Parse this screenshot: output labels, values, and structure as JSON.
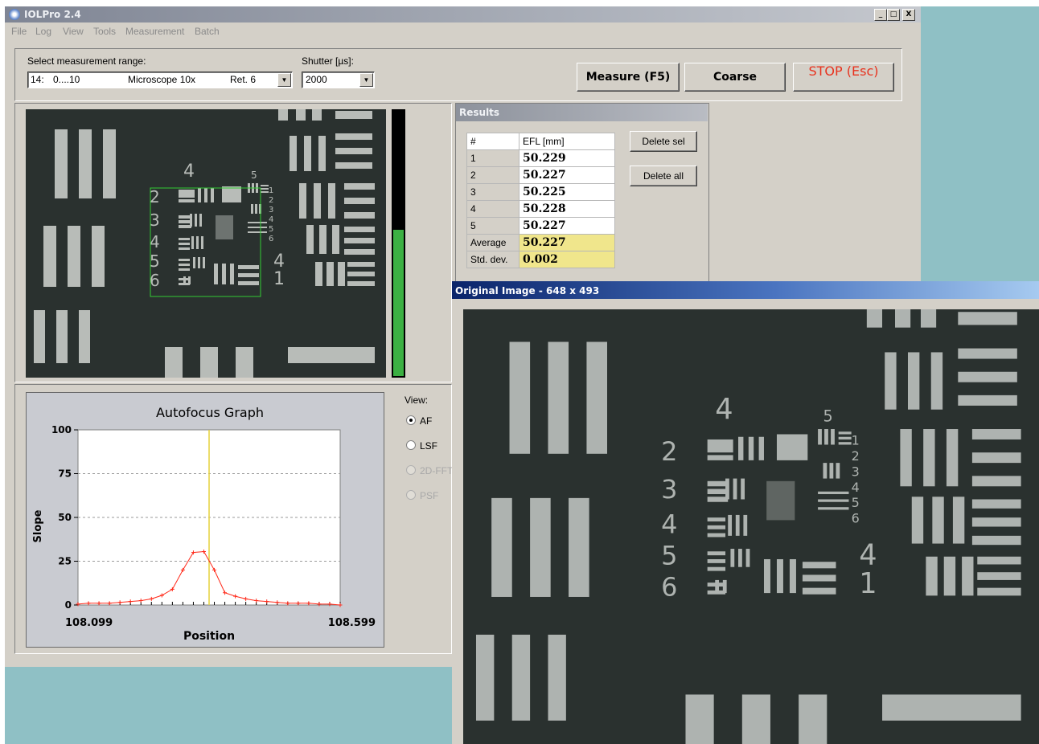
{
  "app": {
    "title": "IOLPro 2.4",
    "window_buttons": [
      "_",
      "□",
      "X"
    ]
  },
  "menu": [
    "File",
    "Log",
    "View",
    "Tools",
    "Measurement",
    "Batch"
  ],
  "controls": {
    "range_label": "Select measurement range:",
    "range_value": {
      "id": "14:",
      "range": "0....10",
      "lens": "Microscope 10x",
      "ret": "Ret. 6"
    },
    "shutter_label": "Shutter [µs]:",
    "shutter_value": "2000",
    "measure_button": "Measure (F5)",
    "coarse_button": "Coarse",
    "stop_button": "STOP (Esc)"
  },
  "focus_level": 0.55,
  "results": {
    "title": "Results",
    "columns": [
      "#",
      "EFL [mm]"
    ],
    "rows": [
      {
        "n": "1",
        "efl": "50.229"
      },
      {
        "n": "2",
        "efl": "50.227"
      },
      {
        "n": "3",
        "efl": "50.225"
      },
      {
        "n": "4",
        "efl": "50.228"
      },
      {
        "n": "5",
        "efl": "50.227"
      }
    ],
    "average_label": "Average",
    "average_value": "50.227",
    "std_label": "Std. dev.",
    "std_value": "0.002",
    "delete_sel": "Delete sel",
    "delete_all": "Delete all"
  },
  "view": {
    "label": "View:",
    "options": [
      {
        "label": "AF",
        "selected": true,
        "enabled": true
      },
      {
        "label": "LSF",
        "selected": false,
        "enabled": true
      },
      {
        "label": "2D-FFT",
        "selected": false,
        "enabled": false
      },
      {
        "label": "PSF",
        "selected": false,
        "enabled": false
      }
    ]
  },
  "target_labels": {
    "g4": "4",
    "g5": "5",
    "e2": "2",
    "e3": "3",
    "e4": "4",
    "e5": "5",
    "e6": "6",
    "s1": "1",
    "s2": "2",
    "s3": "3",
    "s4": "4",
    "s5": "5",
    "s6": "6",
    "r4": "4",
    "r1": "1"
  },
  "chart_data": {
    "type": "line",
    "title": "Autofocus Graph",
    "xlabel": "Position",
    "ylabel": "Slope",
    "xlim": [
      108.099,
      108.599
    ],
    "x_tick_labels": [
      "108.099",
      "108.599"
    ],
    "ylim": [
      0,
      100
    ],
    "y_ticks": [
      0,
      25,
      50,
      75,
      100
    ],
    "grid": true,
    "marker_position": 108.349,
    "series": [
      {
        "color": "#ff2a1a",
        "x": [
          108.099,
          108.119,
          108.139,
          108.159,
          108.179,
          108.199,
          108.219,
          108.239,
          108.259,
          108.279,
          108.299,
          108.319,
          108.339,
          108.359,
          108.379,
          108.399,
          108.419,
          108.439,
          108.459,
          108.479,
          108.499,
          108.519,
          108.539,
          108.559,
          108.579,
          108.599
        ],
        "y": [
          0.5,
          1,
          1,
          1,
          1.5,
          2,
          2.5,
          3.5,
          5.5,
          9,
          20,
          30,
          30.5,
          20,
          7,
          5,
          3.5,
          2.5,
          2,
          1.5,
          1,
          1,
          1,
          0.5,
          0.5,
          0
        ]
      }
    ]
  },
  "original_image": {
    "title": "Original Image - 648 x 493"
  }
}
